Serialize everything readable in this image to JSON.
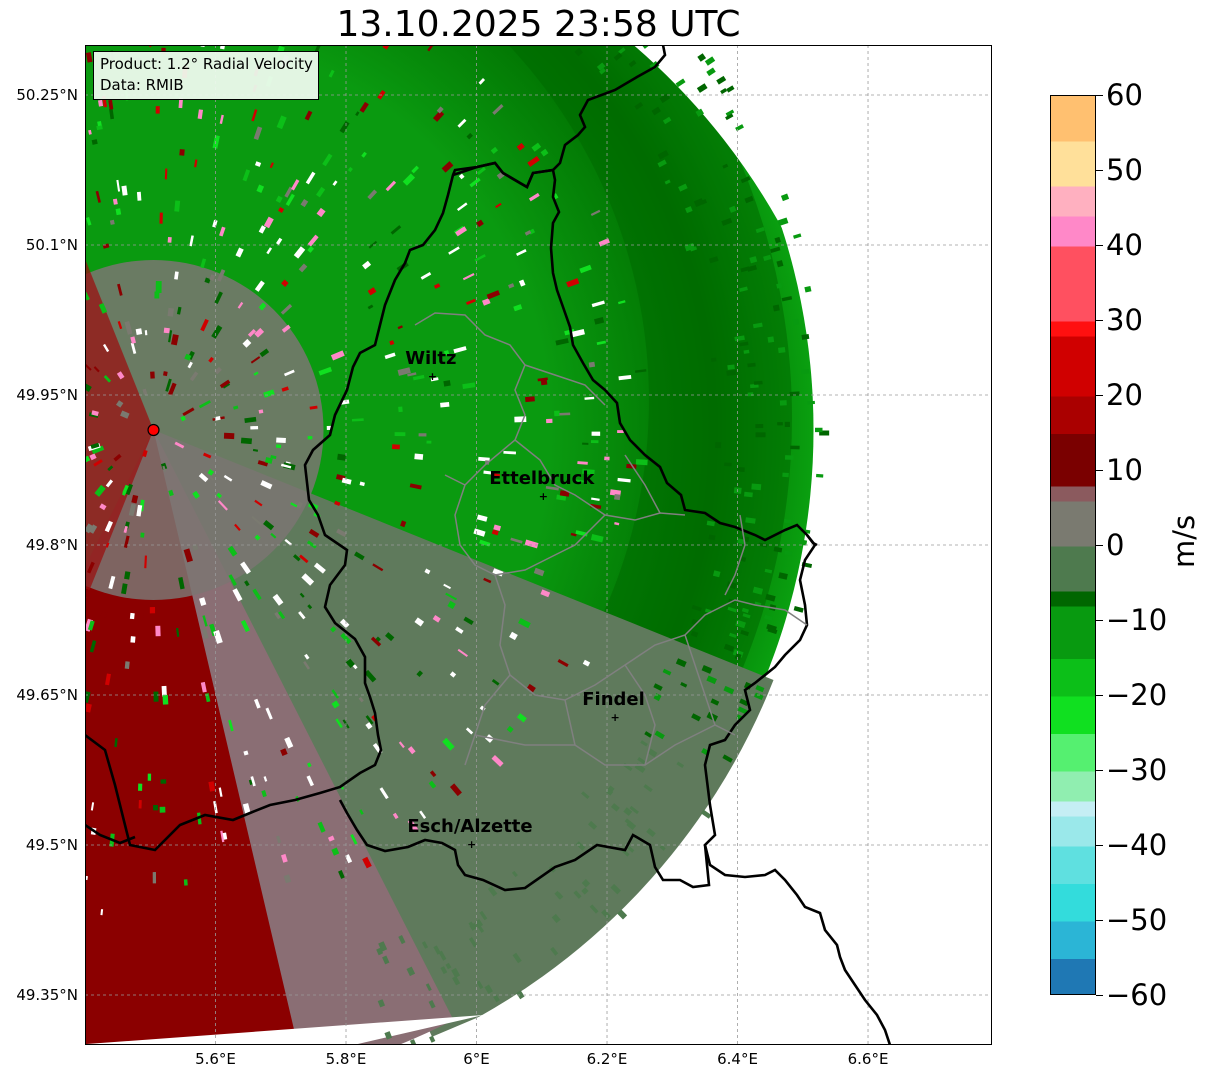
{
  "title": "13.10.2025 23:58 UTC",
  "info_box": {
    "product": "Product: 1.2° Radial Velocity",
    "data": "Data: RMIB"
  },
  "cities": [
    {
      "name": "Wiltz",
      "lon": 5.93,
      "lat": 49.968
    },
    {
      "name": "Ettelbruck",
      "lon": 6.1,
      "lat": 49.848
    },
    {
      "name": "Findel",
      "lon": 6.21,
      "lat": 49.627
    },
    {
      "name": "Esch/Alzette",
      "lon": 5.99,
      "lat": 49.5
    }
  ],
  "radar_site": {
    "lon": 5.505,
    "lat": 49.915,
    "color": "#ff0000"
  },
  "axes": {
    "lon_ticks": [
      "5.6°E",
      "5.8°E",
      "6°E",
      "6.2°E",
      "6.4°E",
      "6.6°E"
    ],
    "lon_values": [
      5.6,
      5.8,
      6.0,
      6.2,
      6.4,
      6.6
    ],
    "lat_ticks": [
      "50.25°N",
      "50.1°N",
      "49.95°N",
      "49.8°N",
      "49.65°N",
      "49.5°N",
      "49.35°N"
    ],
    "lat_values": [
      50.25,
      50.1,
      49.95,
      49.8,
      49.65,
      49.5,
      49.35
    ],
    "lon_range": [
      5.4,
      6.79
    ],
    "lat_range": [
      49.3,
      50.3
    ],
    "grid": true
  },
  "colorbar": {
    "label": "m/s",
    "ticks": [
      "60",
      "50",
      "40",
      "30",
      "20",
      "10",
      "0",
      "−10",
      "−20",
      "−30",
      "−40",
      "−50",
      "−60"
    ],
    "tick_values": [
      60,
      50,
      40,
      30,
      20,
      10,
      0,
      -10,
      -20,
      -30,
      -40,
      -50,
      -60
    ],
    "range": [
      -60,
      60
    ],
    "stops": [
      {
        "v": -60,
        "c": "#1f78b4"
      },
      {
        "v": -55,
        "c": "#2bb5d6"
      },
      {
        "v": -50,
        "c": "#33dcdc"
      },
      {
        "v": -45,
        "c": "#5fe0e0"
      },
      {
        "v": -40,
        "c": "#9ae8ea"
      },
      {
        "v": -36,
        "c": "#c5eef4"
      },
      {
        "v": -34,
        "c": "#90eeb0"
      },
      {
        "v": -30,
        "c": "#55f070"
      },
      {
        "v": -25,
        "c": "#10e020"
      },
      {
        "v": -20,
        "c": "#0cbf18"
      },
      {
        "v": -15,
        "c": "#089a10"
      },
      {
        "v": -8,
        "c": "#006600"
      },
      {
        "v": -6,
        "c": "#4e7a4e"
      },
      {
        "v": 0,
        "c": "#7a7a70"
      },
      {
        "v": 6,
        "c": "#8b5a5e"
      },
      {
        "v": 8,
        "c": "#7a0000"
      },
      {
        "v": 15,
        "c": "#aa0000"
      },
      {
        "v": 20,
        "c": "#d00000"
      },
      {
        "v": 28,
        "c": "#ff1010"
      },
      {
        "v": 30,
        "c": "#ff5060"
      },
      {
        "v": 40,
        "c": "#ff88c8"
      },
      {
        "v": 44,
        "c": "#ffb0c0"
      },
      {
        "v": 48,
        "c": "#ffe09a"
      },
      {
        "v": 54,
        "c": "#ffc070"
      },
      {
        "v": 60,
        "c": "#ffa050"
      }
    ]
  },
  "velocity_field": {
    "receding_color": "#8b0000",
    "zero_color": "#5f7a5c",
    "approaching_color": "#0a9a10",
    "approaching_far_color": "#006a00"
  }
}
